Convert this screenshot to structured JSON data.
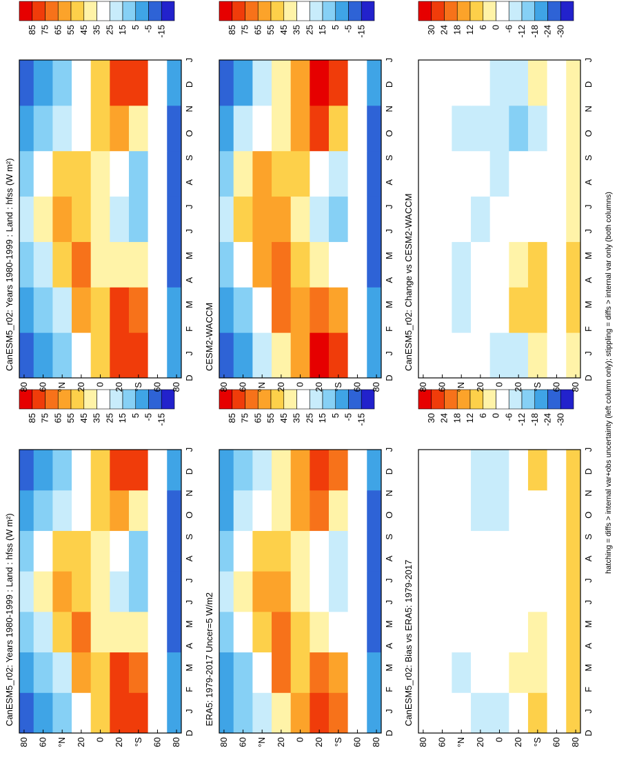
{
  "chart_data": [
    {
      "type": "heatmap",
      "title": "CanESM5_r02: Years 1980-1999 : Land : hfss (W m²)",
      "categories": [
        "D",
        "J",
        "F",
        "M",
        "A",
        "M",
        "J",
        "J",
        "A",
        "S",
        "O",
        "N",
        "D",
        "J"
      ],
      "xlim": [
        85,
        -85
      ],
      "xticks": [
        80,
        60,
        {
          "value": 40,
          "label": "°N"
        },
        20,
        0,
        {
          "value": -20,
          "label": "20"
        },
        {
          "value": -40,
          "label": "°S"
        },
        {
          "value": -60,
          "label": "60"
        },
        {
          "value": -80,
          "label": "80"
        }
      ],
      "x_edges": [
        85,
        70,
        50,
        30,
        10,
        -10,
        -30,
        -50,
        -70,
        -85
      ],
      "z": [
        [
          -5,
          5,
          15,
          35,
          50,
          80,
          85,
          35,
          5
        ],
        [
          0,
          10,
          25,
          65,
          55,
          80,
          70,
          35,
          0
        ],
        [
          10,
          25,
          50,
          70,
          45,
          45,
          40,
          35,
          -5
        ],
        [
          25,
          45,
          60,
          55,
          40,
          25,
          15,
          35,
          -10
        ],
        [
          15,
          35,
          55,
          55,
          40,
          30,
          15,
          35,
          -10
        ],
        [
          5,
          15,
          25,
          35,
          50,
          65,
          45,
          35,
          -5
        ],
        [
          -5,
          5,
          15,
          35,
          50,
          80,
          85,
          35,
          5
        ]
      ],
      "levels": [
        85,
        75,
        65,
        55,
        45,
        35,
        25,
        15,
        5,
        -5,
        -15
      ],
      "colors": [
        "#e60000",
        "#f03c0a",
        "#f7721a",
        "#fca32a",
        "#fdd04a",
        "#fff3a8",
        "#ffffff",
        "#c8ecfb",
        "#86d0f5",
        "#3fa4e6",
        "#2e63d6",
        "#2222cc"
      ]
    },
    {
      "type": "heatmap",
      "title": "ERA5: 1979-2017 Uncer=5 W/m2",
      "categories": [
        "D",
        "J",
        "F",
        "M",
        "A",
        "M",
        "J",
        "J",
        "A",
        "S",
        "O",
        "N",
        "D",
        "J"
      ],
      "xlim": [
        85,
        -85
      ],
      "xticks": [
        80,
        60,
        {
          "value": 40,
          "label": "°N"
        },
        20,
        0,
        {
          "value": -20,
          "label": "20"
        },
        {
          "value": -40,
          "label": "°S"
        },
        {
          "value": -60,
          "label": "60"
        },
        {
          "value": -80,
          "label": "80"
        }
      ],
      "x_edges": [
        85,
        70,
        50,
        30,
        10,
        -10,
        -30,
        -50,
        -70,
        -85
      ],
      "z": [
        [
          0,
          10,
          20,
          45,
          60,
          85,
          75,
          35,
          5
        ],
        [
          5,
          15,
          35,
          70,
          55,
          75,
          65,
          35,
          0
        ],
        [
          15,
          30,
          55,
          75,
          50,
          45,
          35,
          35,
          -5
        ],
        [
          25,
          45,
          60,
          60,
          45,
          30,
          20,
          35,
          -10
        ],
        [
          15,
          35,
          55,
          55,
          45,
          35,
          20,
          35,
          -10
        ],
        [
          5,
          20,
          30,
          45,
          60,
          70,
          45,
          35,
          -5
        ],
        [
          0,
          10,
          20,
          45,
          60,
          85,
          75,
          35,
          5
        ]
      ],
      "levels": [
        85,
        75,
        65,
        55,
        45,
        35,
        25,
        15,
        5,
        -5,
        -15
      ],
      "colors": [
        "#e60000",
        "#f03c0a",
        "#f7721a",
        "#fca32a",
        "#fdd04a",
        "#fff3a8",
        "#ffffff",
        "#c8ecfb",
        "#86d0f5",
        "#3fa4e6",
        "#2e63d6",
        "#2222cc"
      ]
    },
    {
      "type": "heatmap",
      "title": "CanESM5_r02: Bias vs ERA5: 1979-2017",
      "categories": [
        "D",
        "J",
        "F",
        "M",
        "A",
        "M",
        "J",
        "J",
        "A",
        "S",
        "O",
        "N",
        "D",
        "J"
      ],
      "xlim": [
        85,
        -85
      ],
      "xticks": [
        80,
        60,
        {
          "value": 40,
          "label": "°N"
        },
        20,
        0,
        {
          "value": -20,
          "label": "20"
        },
        {
          "value": -40,
          "label": "°S"
        },
        {
          "value": -60,
          "label": "60"
        },
        {
          "value": -80,
          "label": "80"
        }
      ],
      "x_edges": [
        85,
        70,
        50,
        30,
        10,
        -10,
        -30,
        -50,
        -70,
        -85
      ],
      "z": [
        [
          -5,
          -5,
          -5,
          -10,
          -10,
          -5,
          10,
          0,
          10
        ],
        [
          -5,
          -5,
          -10,
          -5,
          0,
          5,
          5,
          0,
          10
        ],
        [
          -5,
          -5,
          -5,
          -5,
          -5,
          0,
          5,
          0,
          10
        ],
        [
          0,
          0,
          0,
          -5,
          -5,
          -5,
          -5,
          0,
          10
        ],
        [
          0,
          0,
          0,
          0,
          -5,
          -5,
          -5,
          0,
          10
        ],
        [
          0,
          -5,
          -5,
          -10,
          -10,
          -5,
          0,
          0,
          10
        ],
        [
          -5,
          -5,
          -5,
          -10,
          -10,
          -5,
          10,
          0,
          10
        ]
      ],
      "levels": [
        30,
        24,
        18,
        12,
        6,
        0,
        -6,
        -12,
        -18,
        -24,
        -30
      ],
      "colors": [
        "#e60000",
        "#f03c0a",
        "#f7721a",
        "#fca32a",
        "#fdd04a",
        "#fff3a8",
        "#ffffff",
        "#c8ecfb",
        "#86d0f5",
        "#3fa4e6",
        "#2e63d6",
        "#2222cc"
      ]
    },
    {
      "type": "heatmap",
      "title": "CanESM5_r02: Years 1980-1999 : Land : hfss (W m²)",
      "categories": [
        "D",
        "J",
        "F",
        "M",
        "A",
        "M",
        "J",
        "J",
        "A",
        "S",
        "O",
        "N",
        "D",
        "J"
      ],
      "xlim": [
        85,
        -85
      ],
      "xticks": [
        80,
        60,
        {
          "value": 40,
          "label": "°N"
        },
        20,
        0,
        {
          "value": -20,
          "label": "20"
        },
        {
          "value": -40,
          "label": "°S"
        },
        {
          "value": -60,
          "label": "60"
        },
        {
          "value": -80,
          "label": "80"
        }
      ],
      "x_edges": [
        85,
        70,
        50,
        30,
        10,
        -10,
        -30,
        -50,
        -70,
        -85
      ],
      "z": [
        [
          -5,
          5,
          15,
          35,
          50,
          80,
          85,
          35,
          5
        ],
        [
          0,
          10,
          25,
          65,
          55,
          80,
          70,
          35,
          0
        ],
        [
          10,
          25,
          50,
          70,
          45,
          45,
          40,
          35,
          -5
        ],
        [
          25,
          45,
          60,
          55,
          40,
          25,
          15,
          35,
          -10
        ],
        [
          15,
          35,
          55,
          55,
          40,
          30,
          15,
          35,
          -10
        ],
        [
          5,
          15,
          25,
          35,
          50,
          65,
          45,
          35,
          -5
        ],
        [
          -5,
          5,
          15,
          35,
          50,
          80,
          85,
          35,
          5
        ]
      ],
      "levels": [
        85,
        75,
        65,
        55,
        45,
        35,
        25,
        15,
        5,
        -5,
        -15
      ],
      "colors": [
        "#e60000",
        "#f03c0a",
        "#f7721a",
        "#fca32a",
        "#fdd04a",
        "#fff3a8",
        "#ffffff",
        "#c8ecfb",
        "#86d0f5",
        "#3fa4e6",
        "#2e63d6",
        "#2222cc"
      ]
    },
    {
      "type": "heatmap",
      "title": "CESM2-WACCM",
      "categories": [
        "D",
        "J",
        "F",
        "M",
        "A",
        "M",
        "J",
        "J",
        "A",
        "S",
        "O",
        "N",
        "D",
        "J"
      ],
      "xlim": [
        85,
        -85
      ],
      "xticks": [
        80,
        60,
        {
          "value": 40,
          "label": "°N"
        },
        20,
        0,
        {
          "value": -20,
          "label": "20"
        },
        {
          "value": -40,
          "label": "°S"
        },
        {
          "value": -60,
          "label": "60"
        },
        {
          "value": -80,
          "label": "80"
        }
      ],
      "x_edges": [
        85,
        70,
        50,
        30,
        10,
        -10,
        -30,
        -50,
        -70,
        -85
      ],
      "z": [
        [
          -5,
          5,
          20,
          40,
          60,
          90,
          80,
          35,
          5
        ],
        [
          0,
          15,
          35,
          70,
          60,
          70,
          60,
          35,
          0
        ],
        [
          10,
          30,
          60,
          70,
          50,
          40,
          30,
          35,
          -5
        ],
        [
          25,
          50,
          65,
          65,
          45,
          25,
          15,
          35,
          -10
        ],
        [
          15,
          40,
          60,
          55,
          50,
          35,
          20,
          35,
          -10
        ],
        [
          5,
          20,
          35,
          45,
          60,
          80,
          55,
          35,
          -5
        ],
        [
          -5,
          5,
          20,
          40,
          60,
          90,
          80,
          35,
          5
        ]
      ],
      "levels": [
        85,
        75,
        65,
        55,
        45,
        35,
        25,
        15,
        5,
        -5,
        -15
      ],
      "colors": [
        "#e60000",
        "#f03c0a",
        "#f7721a",
        "#fca32a",
        "#fdd04a",
        "#fff3a8",
        "#ffffff",
        "#c8ecfb",
        "#86d0f5",
        "#3fa4e6",
        "#2e63d6",
        "#2222cc"
      ]
    },
    {
      "type": "heatmap",
      "title": "CanESM5_r02: Change vs CESM2-WACCM",
      "categories": [
        "D",
        "J",
        "F",
        "M",
        "A",
        "M",
        "J",
        "J",
        "A",
        "S",
        "O",
        "N",
        "D",
        "J"
      ],
      "xlim": [
        85,
        -85
      ],
      "xticks": [
        80,
        60,
        {
          "value": 40,
          "label": "°N"
        },
        20,
        0,
        {
          "value": -20,
          "label": "20"
        },
        {
          "value": -40,
          "label": "°S"
        },
        {
          "value": -60,
          "label": "60"
        },
        {
          "value": -80,
          "label": "80"
        }
      ],
      "x_edges": [
        85,
        70,
        50,
        30,
        10,
        -10,
        -30,
        -50,
        -70,
        -85
      ],
      "z": [
        [
          0,
          0,
          -5,
          -5,
          -10,
          -10,
          5,
          0,
          5
        ],
        [
          0,
          -5,
          -10,
          -5,
          -5,
          10,
          10,
          0,
          10
        ],
        [
          0,
          -5,
          -10,
          -5,
          -5,
          5,
          10,
          0,
          10
        ],
        [
          0,
          -5,
          -5,
          -10,
          -5,
          0,
          0,
          0,
          5
        ],
        [
          0,
          -5,
          -5,
          0,
          -10,
          -5,
          -5,
          0,
          5
        ],
        [
          0,
          -5,
          -10,
          -10,
          -10,
          -15,
          -10,
          0,
          5
        ],
        [
          0,
          0,
          -5,
          -5,
          -10,
          -10,
          5,
          0,
          5
        ]
      ],
      "levels": [
        30,
        24,
        18,
        12,
        6,
        0,
        -6,
        -12,
        -18,
        -24,
        -30
      ],
      "colors": [
        "#e60000",
        "#f03c0a",
        "#f7721a",
        "#fca32a",
        "#fdd04a",
        "#fff3a8",
        "#ffffff",
        "#c8ecfb",
        "#86d0f5",
        "#3fa4e6",
        "#2e63d6",
        "#2222cc"
      ]
    }
  ],
  "footnote": "hatching = diffs > internal var+obs uncertainty (left column only); stippling = diffs > internal var only (both columns)"
}
